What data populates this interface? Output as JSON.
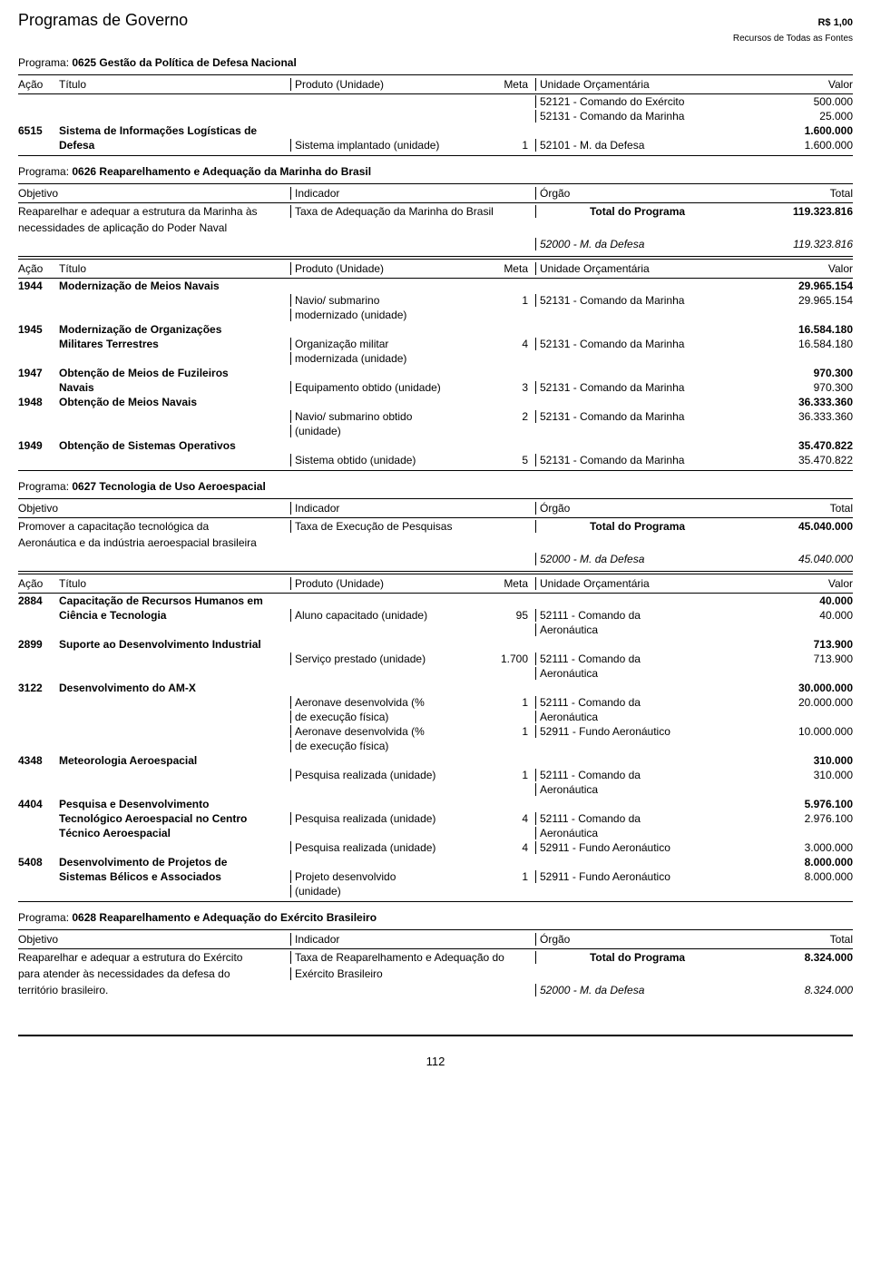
{
  "header": {
    "title": "Programas de Governo",
    "currency": "R$ 1,00",
    "subtitle": "Recursos de Todas as Fontes"
  },
  "labels": {
    "programa": "Programa:",
    "acao": "Ação",
    "titulo": "Título",
    "produto": "Produto (Unidade)",
    "meta": "Meta",
    "unidade": "Unidade Orçamentária",
    "valor": "Valor",
    "objetivo": "Objetivo",
    "indicador": "Indicador",
    "orgao": "Órgão",
    "total": "Total",
    "total_programa": "Total do Programa"
  },
  "p0625": {
    "name": "0625 Gestão da Política de Defesa Nacional",
    "r1": {
      "un": "52121 - Comando do Exército",
      "val": "500.000"
    },
    "r2": {
      "un": "52131 - Comando da Marinha",
      "val": "25.000"
    },
    "r3": {
      "acao": "6515",
      "titulo1": "Sistema de Informações Logísticas de",
      "val": "1.600.000"
    },
    "r4": {
      "titulo2": "Defesa",
      "prod": "Sistema implantado (unidade)",
      "meta": "1",
      "un": "52101 - M. da Defesa",
      "val": "1.600.000"
    }
  },
  "p0626": {
    "name": "0626 Reaparelhamento e Adequação da Marinha do Brasil",
    "obj1": "Reaparelhar e adequar a estrutura da Marinha às",
    "obj2": "necessidades de aplicação do Poder Naval",
    "ind": "Taxa de Adequação da Marinha do Brasil",
    "total_val": "119.323.816",
    "org2": "52000 - M. da Defesa",
    "org2_val": "119.323.816",
    "a1944": {
      "acao": "1944",
      "titulo": "Modernização de Meios Navais",
      "val": "29.965.154",
      "prod1": "Navio/ submarino",
      "prod2": "modernizado (unidade)",
      "meta": "1",
      "un": "52131 - Comando da Marinha",
      "val2": "29.965.154"
    },
    "a1945": {
      "acao": "1945",
      "titulo1": "Modernização de Organizações",
      "val": "16.584.180",
      "titulo2": "Militares Terrestres",
      "prod1": "Organização militar",
      "prod2": "modernizada (unidade)",
      "meta": "4",
      "un": "52131 - Comando da Marinha",
      "val2": "16.584.180"
    },
    "a1947": {
      "acao": "1947",
      "titulo1": "Obtenção de Meios de Fuzileiros",
      "val": "970.300",
      "titulo2": "Navais",
      "prod": "Equipamento obtido (unidade)",
      "meta": "3",
      "un": "52131 - Comando da Marinha",
      "val2": "970.300"
    },
    "a1948": {
      "acao": "1948",
      "titulo": "Obtenção de Meios Navais",
      "val": "36.333.360",
      "prod1": "Navio/ submarino obtido",
      "prod2": "(unidade)",
      "meta": "2",
      "un": "52131 - Comando da Marinha",
      "val2": "36.333.360"
    },
    "a1949": {
      "acao": "1949",
      "titulo": "Obtenção de Sistemas Operativos",
      "val": "35.470.822",
      "prod": "Sistema obtido (unidade)",
      "meta": "5",
      "un": "52131 - Comando da Marinha",
      "val2": "35.470.822"
    }
  },
  "p0627": {
    "name": "0627 Tecnologia de Uso Aeroespacial",
    "obj1": "Promover a capacitação tecnológica da",
    "obj2": "Aeronáutica e da indústria aeroespacial brasileira",
    "ind": "Taxa de Execução de Pesquisas",
    "total_val": "45.040.000",
    "org2": "52000 - M. da Defesa",
    "org2_val": "45.040.000",
    "a2884": {
      "acao": "2884",
      "t1": "Capacitação de Recursos Humanos em",
      "val": "40.000",
      "t2": "Ciência e Tecnologia",
      "prod": "Aluno capacitado (unidade)",
      "meta": "95",
      "un1": "52111 - Comando da",
      "un2": "Aeronáutica",
      "val2": "40.000"
    },
    "a2899": {
      "acao": "2899",
      "t1": "Suporte ao Desenvolvimento Industrial",
      "val": "713.900",
      "prod": "Serviço prestado (unidade)",
      "meta": "1.700",
      "un1": "52111 - Comando da",
      "un2": "Aeronáutica",
      "val2": "713.900"
    },
    "a3122": {
      "acao": "3122",
      "t1": "Desenvolvimento do AM-X",
      "val": "30.000.000",
      "prod1a": "Aeronave desenvolvida (%",
      "prod1b": "de execução física)",
      "meta1": "1",
      "un1a": "52111 - Comando da",
      "un1b": "Aeronáutica",
      "val1": "20.000.000",
      "prod2a": "Aeronave desenvolvida (%",
      "prod2b": "de execução física)",
      "meta2": "1",
      "un2": "52911 - Fundo Aeronáutico",
      "val2": "10.000.000"
    },
    "a4348": {
      "acao": "4348",
      "t1": "Meteorologia Aeroespacial",
      "val": "310.000",
      "prod": "Pesquisa realizada (unidade)",
      "meta": "1",
      "un1": "52111 - Comando da",
      "un2": "Aeronáutica",
      "val2": "310.000"
    },
    "a4404": {
      "acao": "4404",
      "t1": "Pesquisa e Desenvolvimento",
      "val": "5.976.100",
      "t2": "Tecnológico Aeroespacial no Centro",
      "t3": "Técnico Aeroespacial",
      "prod1": "Pesquisa realizada (unidade)",
      "meta1": "4",
      "un1a": "52111 - Comando da",
      "un1b": "Aeronáutica",
      "val1": "2.976.100",
      "prod2": "Pesquisa realizada (unidade)",
      "meta2": "4",
      "un2": "52911 - Fundo Aeronáutico",
      "val2": "3.000.000"
    },
    "a5408": {
      "acao": "5408",
      "t1": "Desenvolvimento de Projetos de",
      "val": "8.000.000",
      "t2": "Sistemas Bélicos e Associados",
      "prod1": "Projeto desenvolvido",
      "prod2": "(unidade)",
      "meta": "1",
      "un": "52911 - Fundo Aeronáutico",
      "val2": "8.000.000"
    }
  },
  "p0628": {
    "name": "0628 Reaparelhamento e Adequação do Exército Brasileiro",
    "obj1": "Reaparelhar e adequar a estrutura do Exército",
    "obj2": "para atender às necessidades da defesa do",
    "obj3": "território brasileiro.",
    "ind1": "Taxa de Reaparelhamento e Adequação do",
    "ind2": "Exército Brasileiro",
    "total_val": "8.324.000",
    "org2": "52000 - M. da Defesa",
    "org2_val": "8.324.000"
  },
  "page_number": "112"
}
